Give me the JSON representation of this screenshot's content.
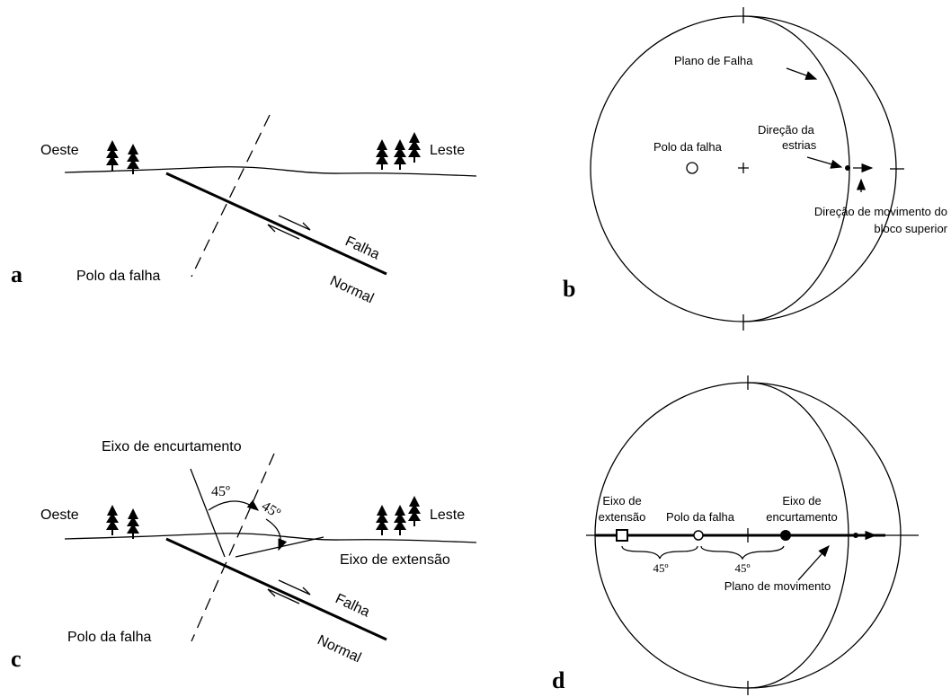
{
  "panel_a": {
    "letter": "a",
    "west": "Oeste",
    "east": "Leste",
    "pole": "Polo da falha",
    "fault": [
      "Falha",
      "Normal"
    ]
  },
  "panel_b": {
    "letter": "b",
    "fault_plane": "Plano de Falha",
    "striae": [
      "Direção da",
      "estrias"
    ],
    "pole": "Polo da falha",
    "movement": [
      "Direção de movimento do",
      "bloco superior"
    ]
  },
  "panel_c": {
    "letter": "c",
    "shortening_axis": "Eixo de encurtamento",
    "angles": [
      "45º",
      "45º"
    ],
    "west": "Oeste",
    "east": "Leste",
    "extension_axis": "Eixo de extensão",
    "pole": "Polo da falha",
    "fault": [
      "Falha",
      "Normal"
    ]
  },
  "panel_d": {
    "letter": "d",
    "extension_axis": [
      "Eixo de",
      "extensão"
    ],
    "pole": "Polo da falha",
    "shortening_axis": [
      "Eixo de",
      "encurtamento"
    ],
    "angles": [
      "45º",
      "45º"
    ],
    "movement_plane": "Plano de movimento"
  }
}
